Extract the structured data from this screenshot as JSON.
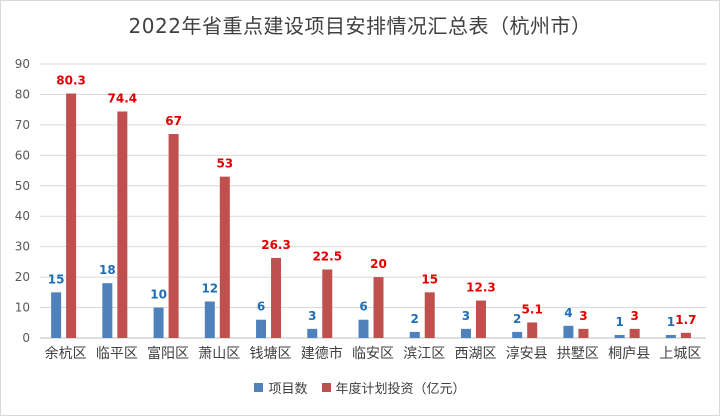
{
  "chart_data": {
    "type": "bar",
    "title": "2022年省重点建设项目安排情况汇总表（杭州市）",
    "categories": [
      "余杭区",
      "临平区",
      "富阳区",
      "萧山区",
      "钱塘区",
      "建德市",
      "临安区",
      "滨江区",
      "西湖区",
      "淳安县",
      "拱墅区",
      "桐庐县",
      "上城区"
    ],
    "series": [
      {
        "name": "项目数",
        "color": "#4F81BD",
        "label_color": "#1F6FB5",
        "values": [
          15,
          18,
          10,
          12,
          6,
          3,
          6,
          2,
          3,
          2,
          4,
          1,
          1
        ]
      },
      {
        "name": "年度计划投资（亿元）",
        "color": "#C0504D",
        "label_color": "#E00000",
        "values": [
          80.3,
          74.4,
          67,
          53,
          26.3,
          22.5,
          20,
          15,
          12.3,
          5.1,
          3,
          3,
          1.7
        ]
      }
    ],
    "ylim": [
      0,
      90
    ],
    "yticks": [
      0,
      10,
      20,
      30,
      40,
      50,
      60,
      70,
      80,
      90
    ],
    "grid": true,
    "legend": "bottom"
  }
}
